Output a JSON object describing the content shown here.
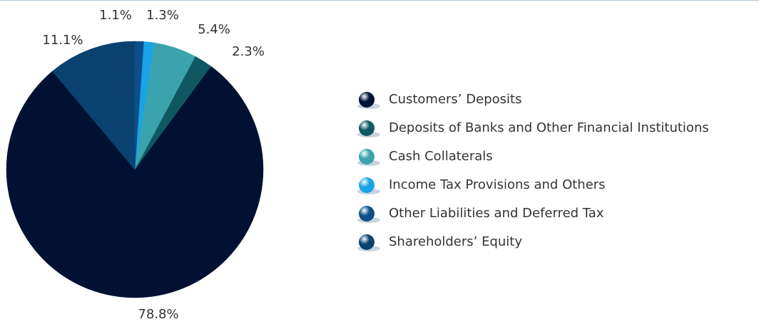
{
  "chart_data": {
    "type": "pie",
    "categories": [
      "Customers’ Deposits",
      "Deposits of Banks and Other Financial Institutions",
      "Cash Collaterals",
      "Income Tax Provisions and Others",
      "Other Liabilities and Deferred Tax",
      "Shareholders’ Equity"
    ],
    "values": [
      78.8,
      2.3,
      5.4,
      1.3,
      1.1,
      11.1
    ],
    "value_labels": [
      "78.8%",
      "2.3%",
      "5.4%",
      "1.3%",
      "1.1%",
      "11.1%"
    ],
    "colors": [
      "#001133",
      "#0f5862",
      "#3aa3ad",
      "#18a4e6",
      "#0d4f8a",
      "#0a4270"
    ],
    "legend": "right"
  }
}
